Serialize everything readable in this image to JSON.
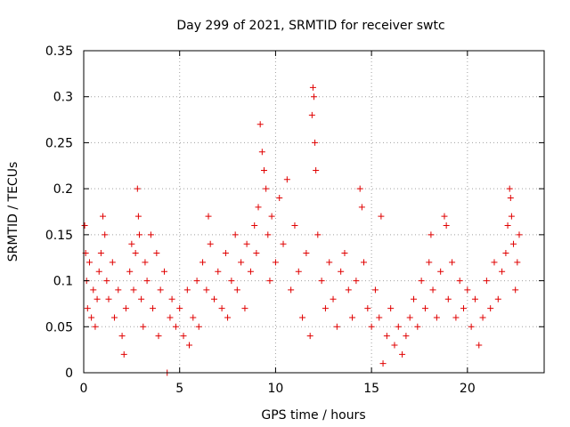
{
  "chart_data": {
    "type": "scatter",
    "title": "Day 299 of 2021, SRMTID for receiver swtc",
    "xlabel": "GPS time / hours",
    "ylabel": "SRMTID / TECUs",
    "xlim": [
      0,
      24
    ],
    "ylim": [
      0,
      0.35
    ],
    "xticks": [
      0,
      5,
      10,
      15,
      20
    ],
    "yticks": [
      0,
      0.05,
      0.1,
      0.15,
      0.2,
      0.25,
      0.3,
      0.35
    ],
    "xtick_labels": [
      "0",
      "5",
      "10",
      "15",
      "20"
    ],
    "ytick_labels": [
      "0",
      "0.05",
      "0.1",
      "0.15",
      "0.2",
      "0.25",
      "0.3",
      "0.35"
    ],
    "grid": true,
    "marker": "+",
    "color": "#e00000",
    "series": [
      {
        "name": "SRMTID",
        "points": [
          [
            0.05,
            0.16
          ],
          [
            0.1,
            0.13
          ],
          [
            0.15,
            0.1
          ],
          [
            0.2,
            0.07
          ],
          [
            0.3,
            0.12
          ],
          [
            0.4,
            0.06
          ],
          [
            0.5,
            0.09
          ],
          [
            0.6,
            0.05
          ],
          [
            0.7,
            0.08
          ],
          [
            0.8,
            0.11
          ],
          [
            0.9,
            0.13
          ],
          [
            1.0,
            0.17
          ],
          [
            1.1,
            0.15
          ],
          [
            1.2,
            0.1
          ],
          [
            1.3,
            0.08
          ],
          [
            1.5,
            0.12
          ],
          [
            1.6,
            0.06
          ],
          [
            1.8,
            0.09
          ],
          [
            2.0,
            0.04
          ],
          [
            2.1,
            0.02
          ],
          [
            2.2,
            0.07
          ],
          [
            2.4,
            0.11
          ],
          [
            2.5,
            0.14
          ],
          [
            2.6,
            0.09
          ],
          [
            2.7,
            0.13
          ],
          [
            2.8,
            0.2
          ],
          [
            2.85,
            0.17
          ],
          [
            2.9,
            0.15
          ],
          [
            3.0,
            0.08
          ],
          [
            3.1,
            0.05
          ],
          [
            3.2,
            0.12
          ],
          [
            3.3,
            0.1
          ],
          [
            3.5,
            0.15
          ],
          [
            3.6,
            0.07
          ],
          [
            3.8,
            0.13
          ],
          [
            3.9,
            0.04
          ],
          [
            4.0,
            0.09
          ],
          [
            4.2,
            0.11
          ],
          [
            4.35,
            0.0
          ],
          [
            4.5,
            0.06
          ],
          [
            4.6,
            0.08
          ],
          [
            4.8,
            0.05
          ],
          [
            5.0,
            0.07
          ],
          [
            5.2,
            0.04
          ],
          [
            5.4,
            0.09
          ],
          [
            5.5,
            0.03
          ],
          [
            5.7,
            0.06
          ],
          [
            5.9,
            0.1
          ],
          [
            6.0,
            0.05
          ],
          [
            6.2,
            0.12
          ],
          [
            6.4,
            0.09
          ],
          [
            6.5,
            0.17
          ],
          [
            6.6,
            0.14
          ],
          [
            6.8,
            0.08
          ],
          [
            7.0,
            0.11
          ],
          [
            7.2,
            0.07
          ],
          [
            7.4,
            0.13
          ],
          [
            7.5,
            0.06
          ],
          [
            7.7,
            0.1
          ],
          [
            7.9,
            0.15
          ],
          [
            8.0,
            0.09
          ],
          [
            8.2,
            0.12
          ],
          [
            8.4,
            0.07
          ],
          [
            8.5,
            0.14
          ],
          [
            8.7,
            0.11
          ],
          [
            8.9,
            0.16
          ],
          [
            9.0,
            0.13
          ],
          [
            9.1,
            0.18
          ],
          [
            9.2,
            0.27
          ],
          [
            9.3,
            0.24
          ],
          [
            9.4,
            0.22
          ],
          [
            9.5,
            0.2
          ],
          [
            9.6,
            0.15
          ],
          [
            9.7,
            0.1
          ],
          [
            9.8,
            0.17
          ],
          [
            10.0,
            0.12
          ],
          [
            10.2,
            0.19
          ],
          [
            10.4,
            0.14
          ],
          [
            10.6,
            0.21
          ],
          [
            10.8,
            0.09
          ],
          [
            11.0,
            0.16
          ],
          [
            11.2,
            0.11
          ],
          [
            11.4,
            0.06
          ],
          [
            11.6,
            0.13
          ],
          [
            11.8,
            0.04
          ],
          [
            11.9,
            0.28
          ],
          [
            11.95,
            0.31
          ],
          [
            12.0,
            0.3
          ],
          [
            12.05,
            0.25
          ],
          [
            12.1,
            0.22
          ],
          [
            12.2,
            0.15
          ],
          [
            12.4,
            0.1
          ],
          [
            12.6,
            0.07
          ],
          [
            12.8,
            0.12
          ],
          [
            13.0,
            0.08
          ],
          [
            13.2,
            0.05
          ],
          [
            13.4,
            0.11
          ],
          [
            13.6,
            0.13
          ],
          [
            13.8,
            0.09
          ],
          [
            14.0,
            0.06
          ],
          [
            14.2,
            0.1
          ],
          [
            14.4,
            0.2
          ],
          [
            14.5,
            0.18
          ],
          [
            14.6,
            0.12
          ],
          [
            14.8,
            0.07
          ],
          [
            15.0,
            0.05
          ],
          [
            15.2,
            0.09
          ],
          [
            15.4,
            0.06
          ],
          [
            15.5,
            0.17
          ],
          [
            15.6,
            0.01
          ],
          [
            15.8,
            0.04
          ],
          [
            16.0,
            0.07
          ],
          [
            16.2,
            0.03
          ],
          [
            16.4,
            0.05
          ],
          [
            16.6,
            0.02
          ],
          [
            16.8,
            0.04
          ],
          [
            17.0,
            0.06
          ],
          [
            17.2,
            0.08
          ],
          [
            17.4,
            0.05
          ],
          [
            17.6,
            0.1
          ],
          [
            17.8,
            0.07
          ],
          [
            18.0,
            0.12
          ],
          [
            18.1,
            0.15
          ],
          [
            18.2,
            0.09
          ],
          [
            18.4,
            0.06
          ],
          [
            18.6,
            0.11
          ],
          [
            18.8,
            0.17
          ],
          [
            18.9,
            0.16
          ],
          [
            19.0,
            0.08
          ],
          [
            19.2,
            0.12
          ],
          [
            19.4,
            0.06
          ],
          [
            19.6,
            0.1
          ],
          [
            19.8,
            0.07
          ],
          [
            20.0,
            0.09
          ],
          [
            20.2,
            0.05
          ],
          [
            20.4,
            0.08
          ],
          [
            20.6,
            0.03
          ],
          [
            20.8,
            0.06
          ],
          [
            21.0,
            0.1
          ],
          [
            21.2,
            0.07
          ],
          [
            21.4,
            0.12
          ],
          [
            21.6,
            0.08
          ],
          [
            21.8,
            0.11
          ],
          [
            22.0,
            0.13
          ],
          [
            22.1,
            0.16
          ],
          [
            22.2,
            0.2
          ],
          [
            22.25,
            0.19
          ],
          [
            22.3,
            0.17
          ],
          [
            22.4,
            0.14
          ],
          [
            22.5,
            0.09
          ],
          [
            22.6,
            0.12
          ],
          [
            22.7,
            0.15
          ]
        ]
      }
    ]
  }
}
